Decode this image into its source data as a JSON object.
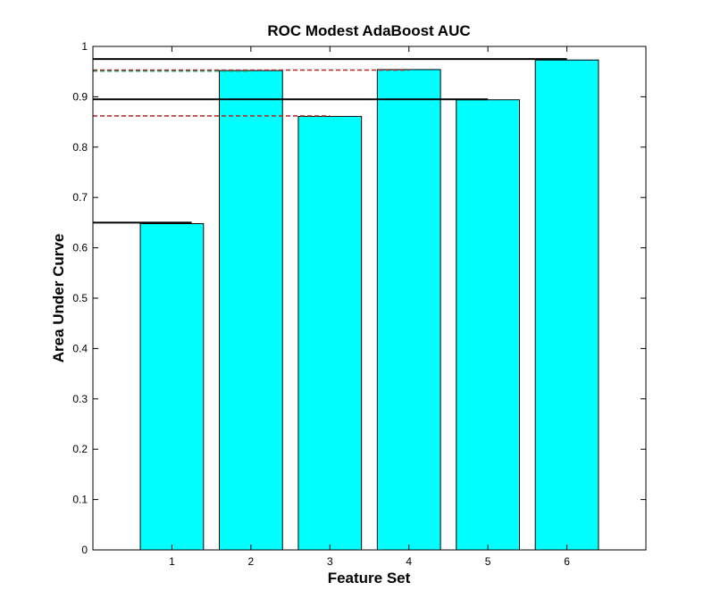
{
  "chart_data": {
    "type": "bar",
    "title": "ROC Modest AdaBoost AUC",
    "xlabel": "Feature Set",
    "ylabel": "Area Under Curve",
    "categories": [
      "1",
      "2",
      "3",
      "4",
      "5",
      "6"
    ],
    "values": [
      0.648,
      0.952,
      0.861,
      0.954,
      0.894,
      0.973
    ],
    "xlim": [
      0,
      7
    ],
    "ylim": [
      0,
      1
    ],
    "yticks": [
      "0",
      "0.1",
      "0.2",
      "0.3",
      "0.4",
      "0.5",
      "0.6",
      "0.7",
      "0.8",
      "0.9",
      "1"
    ],
    "reference_lines": [
      {
        "style": "solid",
        "color": "#000000",
        "y": 0.65,
        "x_end": 1.25
      },
      {
        "style": "solid",
        "color": "#000000",
        "y": 0.895,
        "x_end": 5.0
      },
      {
        "style": "solid",
        "color": "#000000",
        "y": 0.975,
        "x_end": 6.0
      },
      {
        "style": "dashed",
        "color": "#b22222",
        "y": 0.862,
        "x_end": 3.0
      },
      {
        "style": "dashed",
        "color": "#b22222",
        "y": 0.953,
        "x_end": 4.0
      },
      {
        "style": "dashed",
        "color": "#2e8b57",
        "y": 0.951,
        "x_end": 2.0
      }
    ],
    "colors": {
      "bar_fill": "#00ffff",
      "bar_stroke": "#000000",
      "axes": "#000000",
      "background": "#ffffff"
    },
    "grid": false,
    "legend": "none"
  }
}
